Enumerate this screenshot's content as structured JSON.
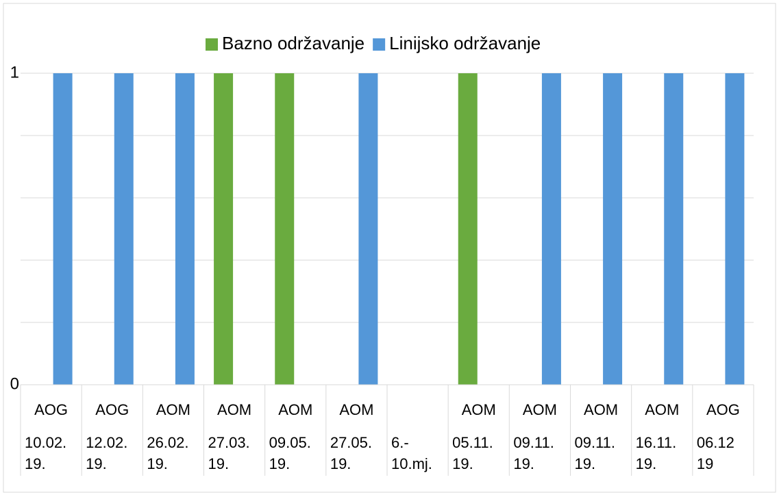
{
  "chart_data": {
    "type": "bar",
    "series": [
      {
        "name": "Bazno održavanje",
        "color": "#6aab3f",
        "values": [
          0,
          0,
          0,
          1,
          1,
          0,
          null,
          1,
          0,
          0,
          0,
          0
        ]
      },
      {
        "name": "Linijsko održavanje",
        "color": "#5497d8",
        "values": [
          1,
          1,
          1,
          0,
          0,
          1,
          null,
          0,
          1,
          1,
          1,
          1
        ]
      }
    ],
    "types": [
      "AOG",
      "AOG",
      "AOM",
      "AOM",
      "AOM",
      "AOM",
      null,
      "AOM",
      "AOM",
      "AOM",
      "AOM",
      "AOG"
    ],
    "categories": [
      [
        "10.02.",
        "19."
      ],
      [
        "12.02.",
        "19."
      ],
      [
        "26.02.",
        "19."
      ],
      [
        "27.03.",
        "19."
      ],
      [
        "09.05.",
        "19."
      ],
      [
        "27.05.",
        "19."
      ],
      [
        "6.-",
        "10.mj."
      ],
      [
        "05.11.",
        "19."
      ],
      [
        "09.11.",
        "19."
      ],
      [
        "09.11.",
        "19."
      ],
      [
        "16.11.",
        "19."
      ],
      [
        "06.12",
        "19"
      ]
    ],
    "ylim": [
      0,
      1
    ],
    "yticks": [
      0,
      1
    ],
    "ygrid": [
      0.2,
      0.4,
      0.6,
      0.8
    ],
    "grid": true,
    "legend": "top"
  }
}
